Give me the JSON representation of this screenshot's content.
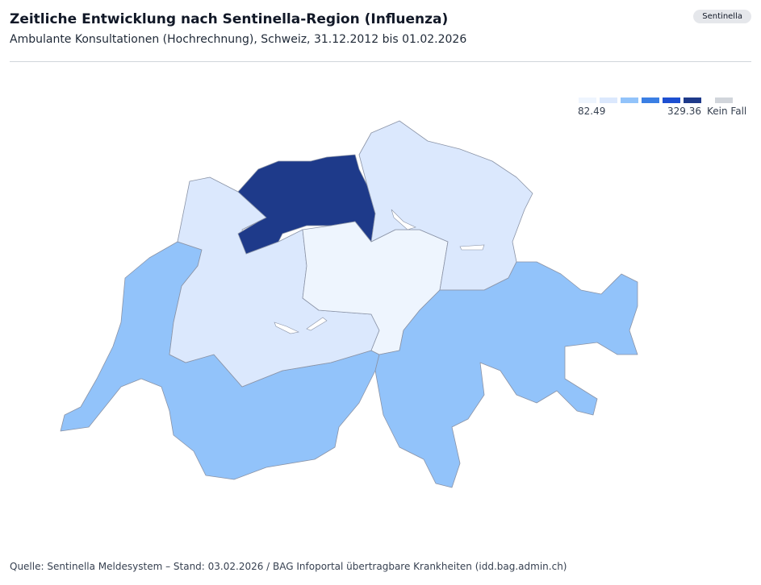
{
  "header": {
    "title": "Zeitliche Entwicklung nach Sentinella-Region (Influenza)",
    "subtitle": "Ambulante Konsultationen (Hochrechnung), Schweiz, 31.12.2012 bis 01.02.2026",
    "badge": "Sentinella"
  },
  "legend": {
    "colors": [
      "#eef5fe",
      "#dbe8fd",
      "#92c3fa",
      "#3b7fe4",
      "#1d4fd1",
      "#1e3a8a"
    ],
    "min": 82.49,
    "max": 329.36,
    "no_data_label": "Kein Fall",
    "no_data_color": "#d1d5db"
  },
  "map": {
    "region_colors": [
      "#92c3fa",
      "#dbe8fd",
      "#1e3a8a",
      "#eef5fe",
      "#dbe8fd",
      "#92c3fa"
    ]
  },
  "footer": {
    "source": "Quelle: Sentinella Meldesystem – Stand: 03.02.2026 / BAG Infoportal übertragbare Krankheiten (idd.bag.admin.ch)"
  }
}
